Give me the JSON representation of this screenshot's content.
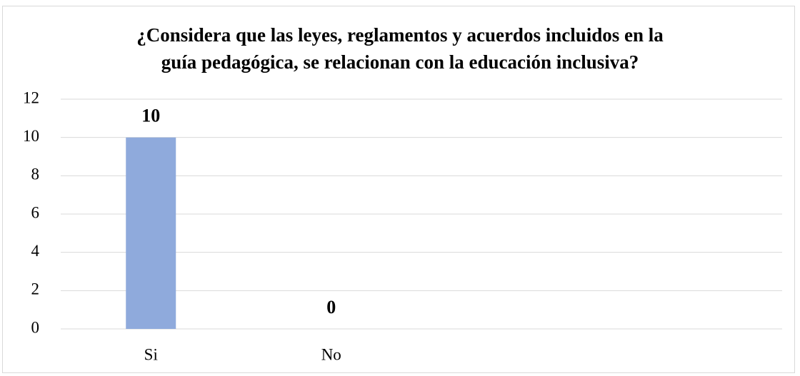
{
  "chart_data": {
    "type": "bar",
    "title": "¿Considera que las leyes, reglamentos y acuerdos incluidos en la guía pedagógica, se relacionan con la educación inclusiva?",
    "categories": [
      "Si",
      "No",
      null,
      null
    ],
    "values": [
      10,
      0,
      null,
      null
    ],
    "color": "#8faadc",
    "ylim": [
      0,
      12
    ],
    "yticks": [
      0,
      2,
      4,
      6,
      8,
      10,
      12
    ],
    "grid": true
  }
}
